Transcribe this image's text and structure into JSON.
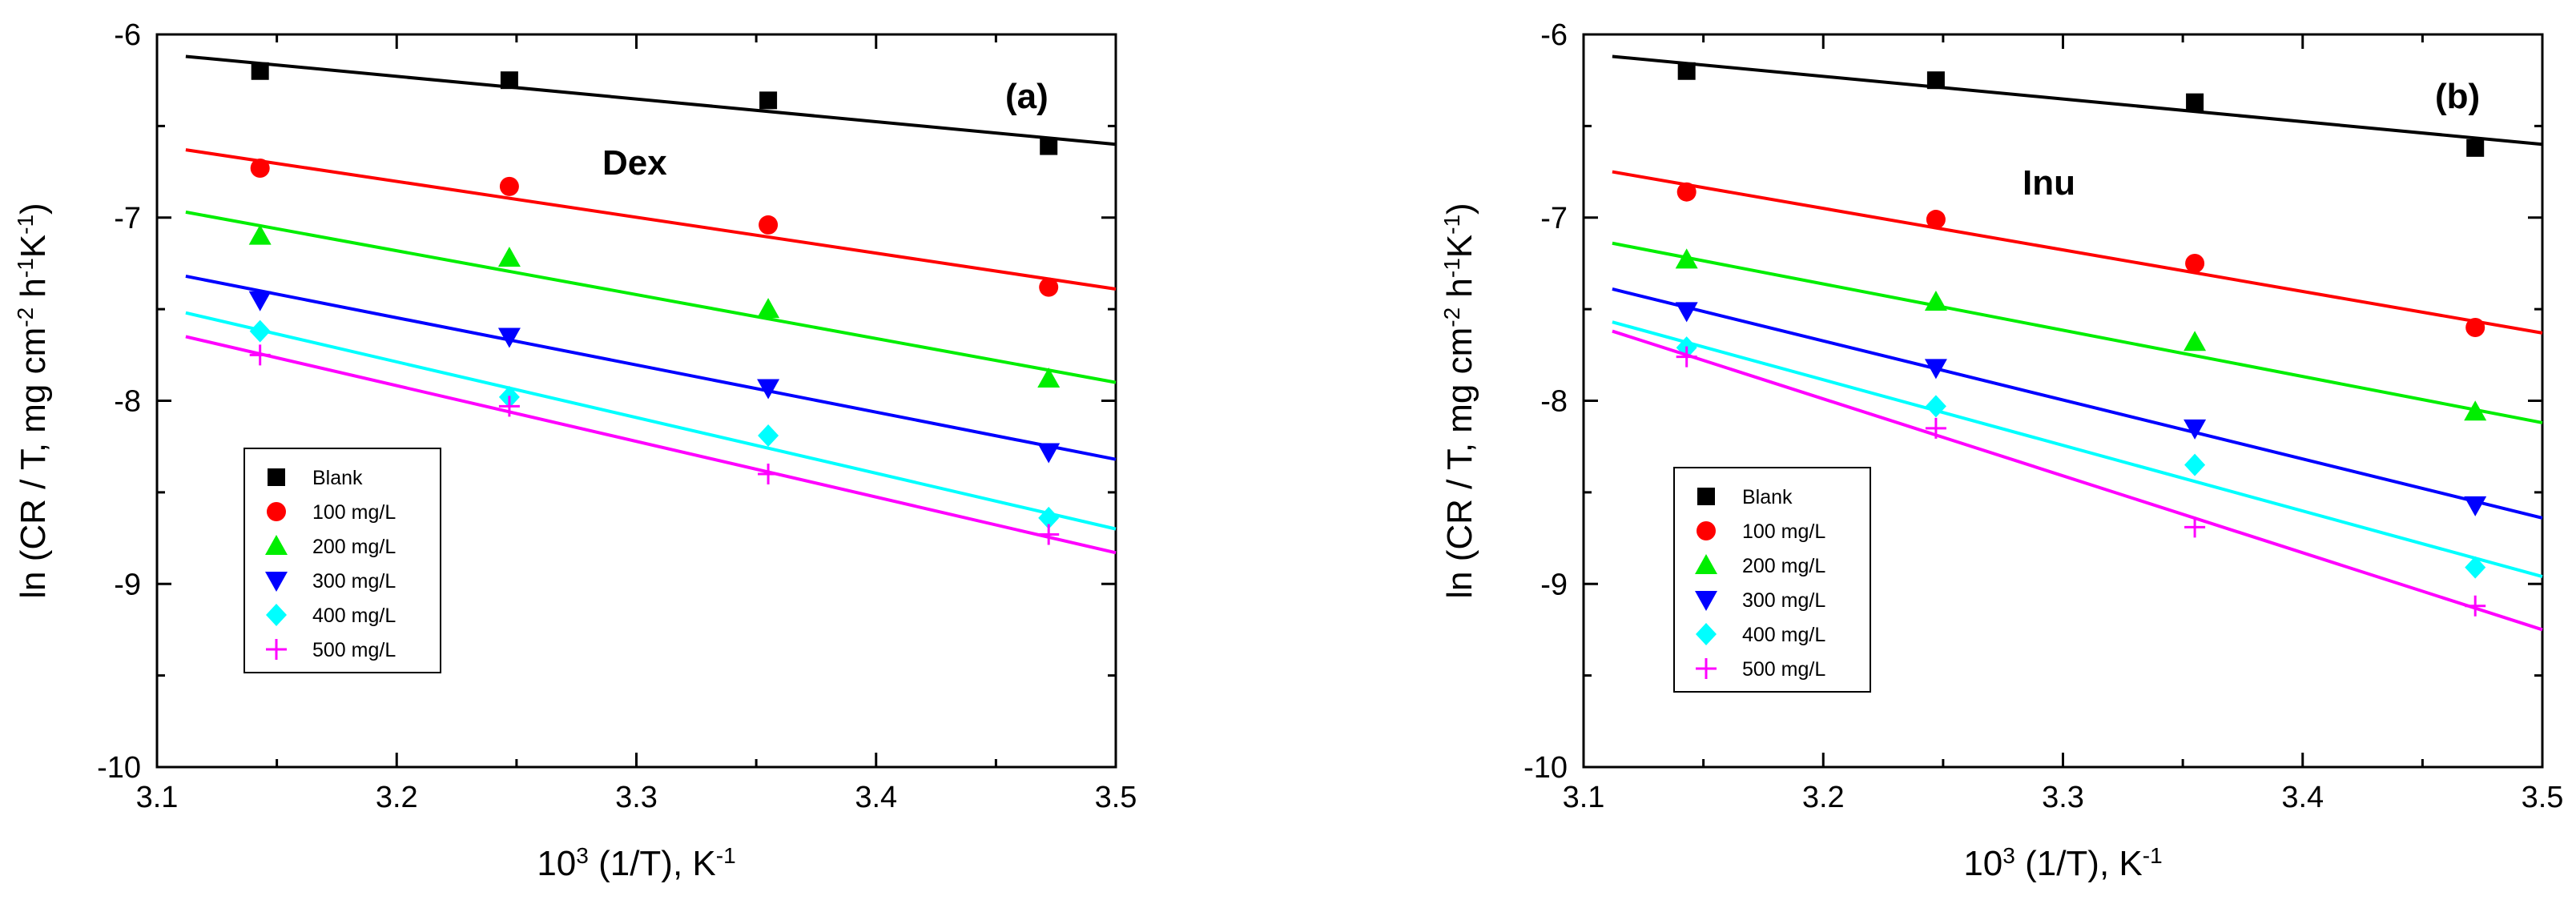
{
  "figure": {
    "panels": [
      "a",
      "b"
    ]
  },
  "chart_data": [
    {
      "type": "scatter",
      "panel_label": "(a)",
      "annotation": "Dex",
      "xlabel": {
        "base": "10",
        "sup": "3",
        "rest": " (1/T), K",
        "sup2": "-1"
      },
      "ylabel": {
        "parts": [
          "ln (CR / T, mg cm",
          "-2",
          " h",
          "-1",
          "K",
          "-1",
          ")"
        ]
      },
      "xlim": [
        3.1,
        3.5
      ],
      "ylim": [
        -10,
        -6
      ],
      "xticks": [
        3.1,
        3.2,
        3.3,
        3.4,
        3.5
      ],
      "xtick_labels": [
        "3.1",
        "3.2",
        "3.3",
        "3.4",
        "3.5"
      ],
      "yticks": [
        -10,
        -9,
        -8,
        -7,
        -6
      ],
      "ytick_labels": [
        "-10",
        "-9",
        "-8",
        "-7",
        "-6"
      ],
      "grid": false,
      "legend_position": "lower-left",
      "x": [
        3.143,
        3.247,
        3.355,
        3.472
      ],
      "series": [
        {
          "name": "Blank",
          "marker": "square",
          "color": "#000000",
          "values": [
            -6.2,
            -6.25,
            -6.36,
            -6.61
          ],
          "fit": [
            -6.12,
            -6.6
          ]
        },
        {
          "name": "100 mg/L",
          "marker": "circle",
          "color": "#ff0000",
          "values": [
            -6.73,
            -6.83,
            -7.04,
            -7.38
          ],
          "fit": [
            -6.63,
            -7.39
          ]
        },
        {
          "name": "200 mg/L",
          "marker": "triangle-up",
          "color": "#00ee00",
          "values": [
            -7.1,
            -7.22,
            -7.5,
            -7.88
          ],
          "fit": [
            -6.97,
            -7.9
          ]
        },
        {
          "name": "300 mg/L",
          "marker": "triangle-down",
          "color": "#0000ff",
          "values": [
            -7.45,
            -7.65,
            -7.93,
            -8.28
          ],
          "fit": [
            -7.32,
            -8.32
          ]
        },
        {
          "name": "400 mg/L",
          "marker": "diamond",
          "color": "#00ffff",
          "values": [
            -7.62,
            -7.98,
            -8.19,
            -8.64
          ],
          "fit": [
            -7.52,
            -8.7
          ]
        },
        {
          "name": "500 mg/L",
          "marker": "plus",
          "color": "#ff00ff",
          "values": [
            -7.75,
            -8.03,
            -8.4,
            -8.73
          ],
          "fit": [
            -7.65,
            -8.83
          ]
        }
      ]
    },
    {
      "type": "scatter",
      "panel_label": "(b)",
      "annotation": "Inu",
      "xlabel": {
        "base": "10",
        "sup": "3",
        "rest": " (1/T), K",
        "sup2": "-1"
      },
      "ylabel": {
        "parts": [
          "ln (CR / T, mg cm",
          "-2",
          " h",
          "-1",
          "K",
          "-1",
          ")"
        ]
      },
      "xlim": [
        3.1,
        3.5
      ],
      "ylim": [
        -10,
        -6
      ],
      "xticks": [
        3.1,
        3.2,
        3.3,
        3.4,
        3.5
      ],
      "xtick_labels": [
        "3.1",
        "3.2",
        "3.3",
        "3.4",
        "3.5"
      ],
      "yticks": [
        -10,
        -9,
        -8,
        -7,
        -6
      ],
      "ytick_labels": [
        "-10",
        "-9",
        "-8",
        "-7",
        "-6"
      ],
      "grid": false,
      "legend_position": "lower-left",
      "x": [
        3.143,
        3.247,
        3.355,
        3.472
      ],
      "series": [
        {
          "name": "Blank",
          "marker": "square",
          "color": "#000000",
          "values": [
            -6.2,
            -6.25,
            -6.37,
            -6.62
          ],
          "fit": [
            -6.12,
            -6.6
          ]
        },
        {
          "name": "100 mg/L",
          "marker": "circle",
          "color": "#ff0000",
          "values": [
            -6.86,
            -7.01,
            -7.25,
            -7.6
          ],
          "fit": [
            -6.75,
            -7.63
          ]
        },
        {
          "name": "200 mg/L",
          "marker": "triangle-up",
          "color": "#00ee00",
          "values": [
            -7.23,
            -7.46,
            -7.68,
            -8.06
          ],
          "fit": [
            -7.14,
            -8.12
          ]
        },
        {
          "name": "300 mg/L",
          "marker": "triangle-down",
          "color": "#0000ff",
          "values": [
            -7.51,
            -7.82,
            -8.15,
            -8.57
          ],
          "fit": [
            -7.39,
            -8.64
          ]
        },
        {
          "name": "400 mg/L",
          "marker": "diamond",
          "color": "#00ffff",
          "values": [
            -7.71,
            -8.03,
            -8.35,
            -8.91
          ],
          "fit": [
            -7.57,
            -8.96
          ]
        },
        {
          "name": "500 mg/L",
          "marker": "plus",
          "color": "#ff00ff",
          "values": [
            -7.76,
            -8.15,
            -8.69,
            -9.12
          ],
          "fit": [
            -7.62,
            -9.25
          ]
        }
      ]
    }
  ]
}
